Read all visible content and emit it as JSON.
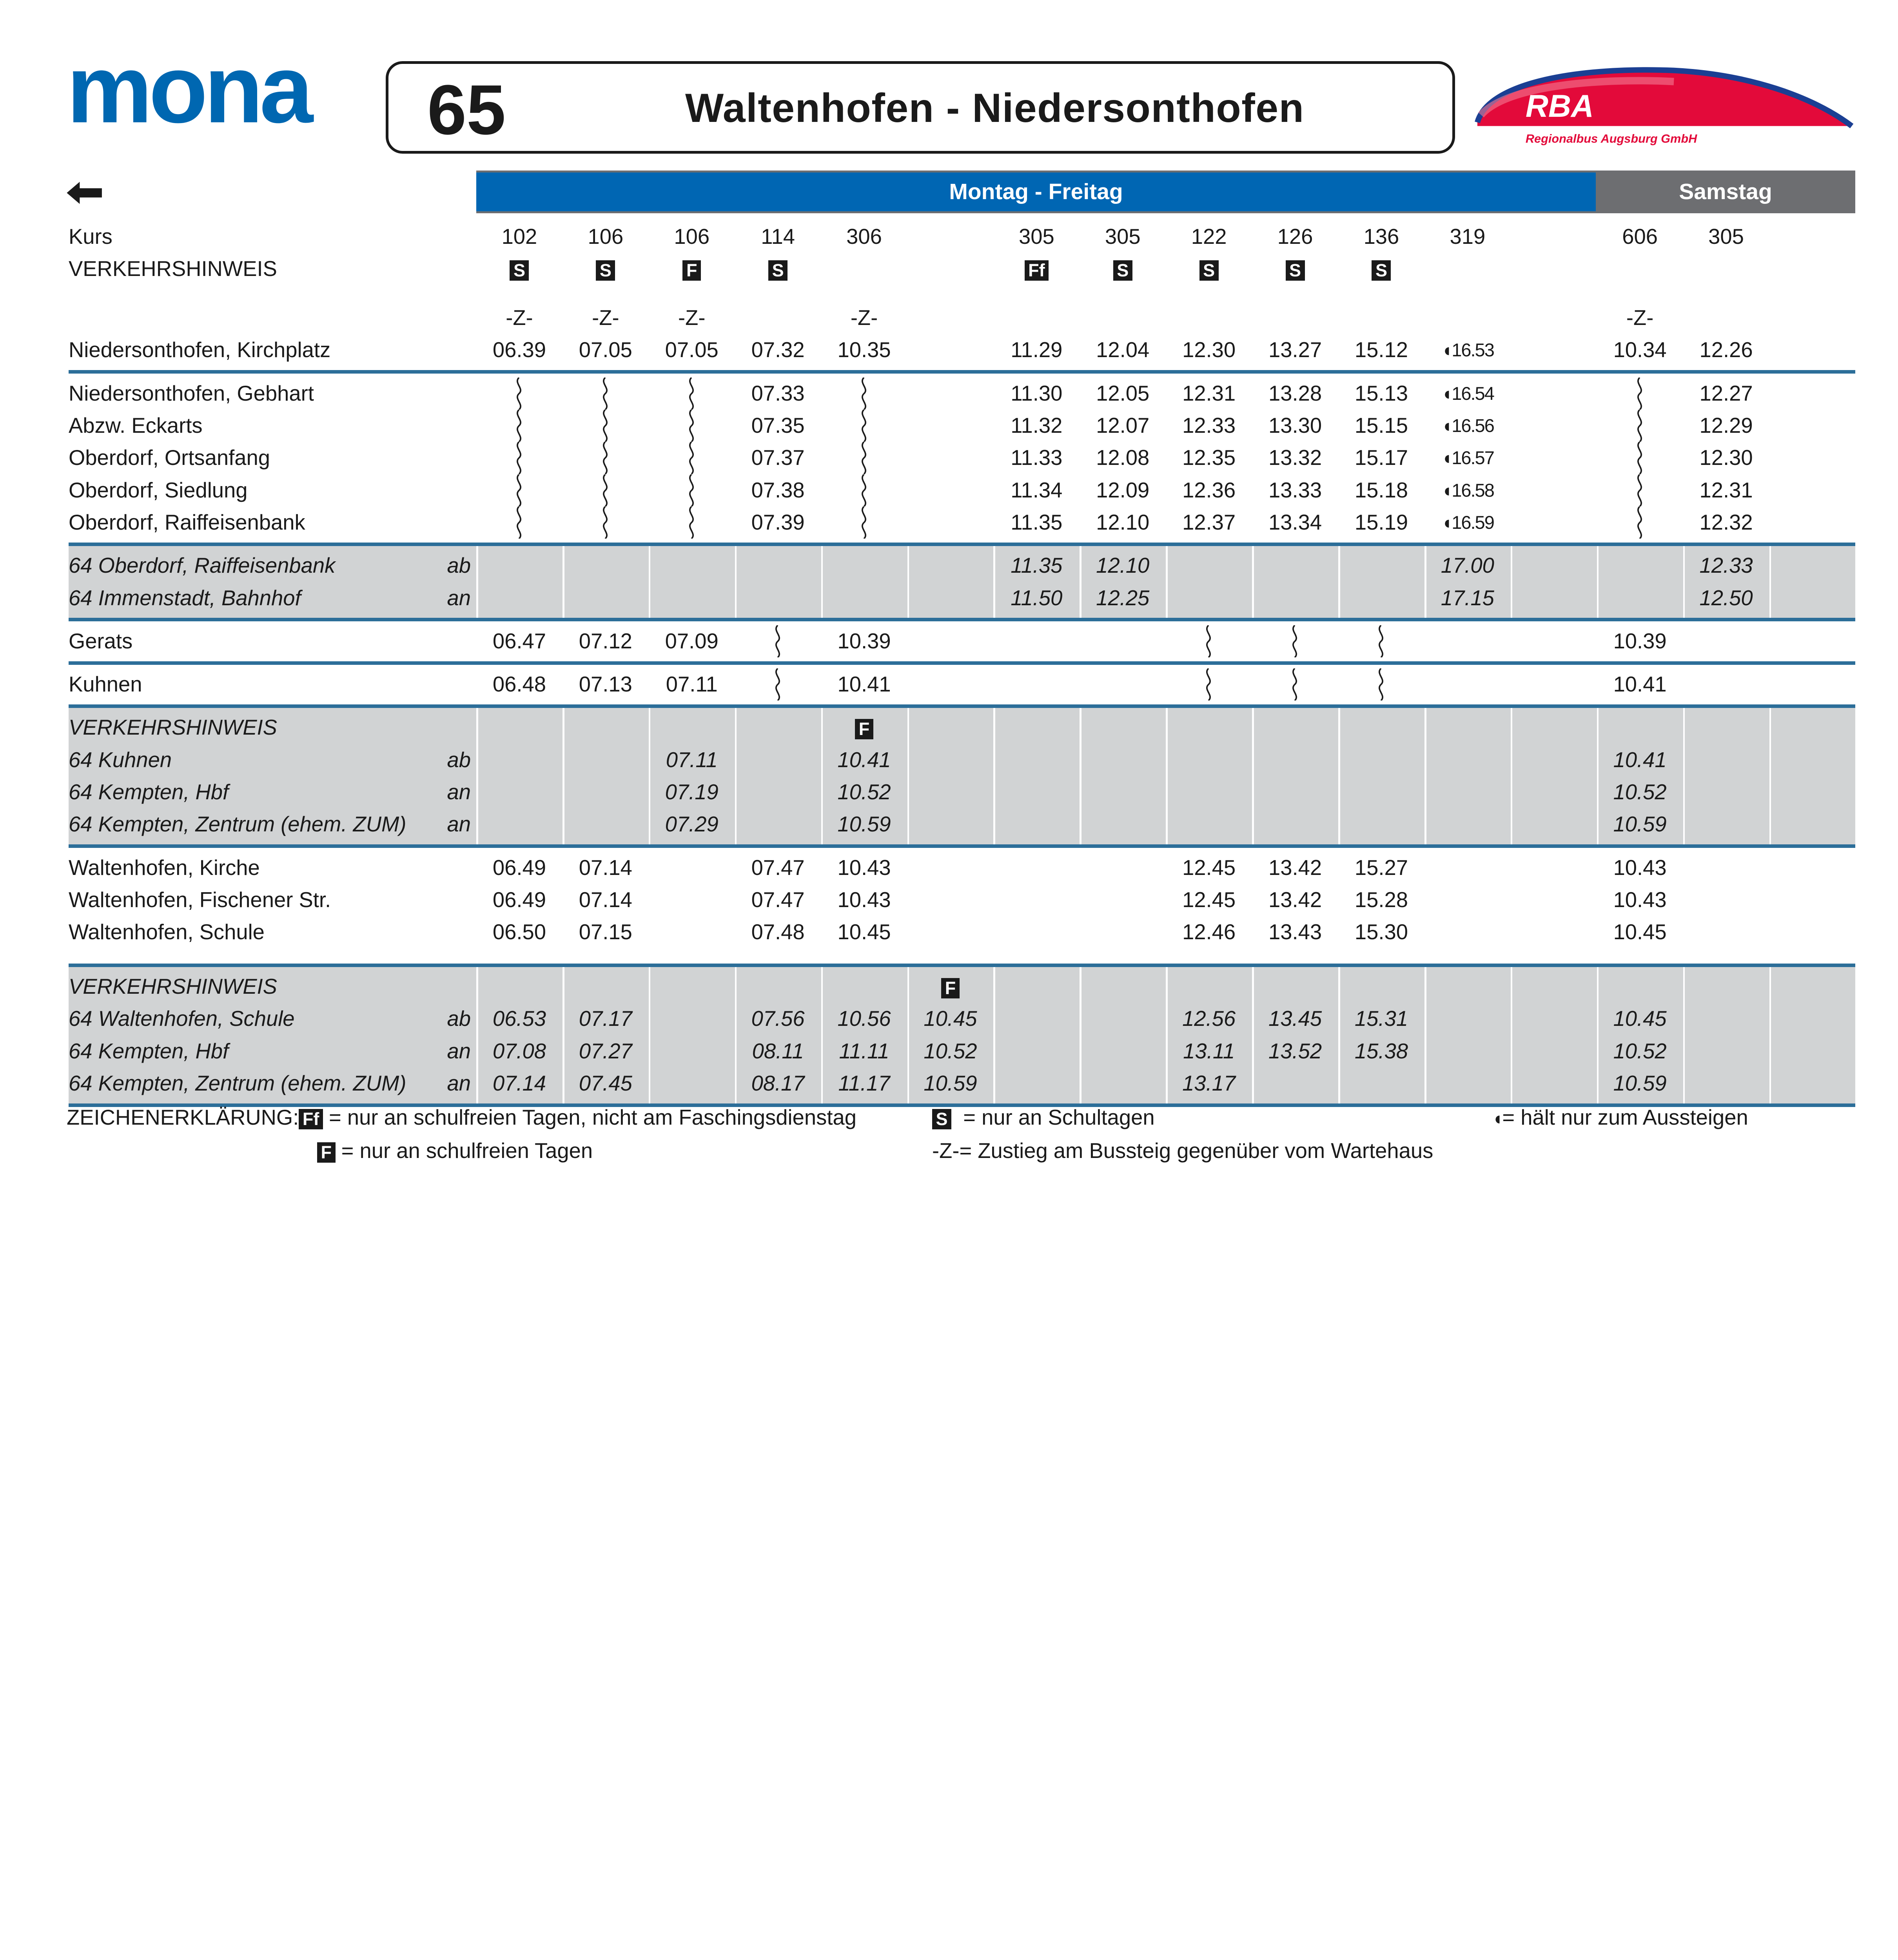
{
  "header": {
    "logo": "mona",
    "line_number": "65",
    "route_title": "Waltenhofen - Niedersonthofen",
    "operator_logo": "RBA",
    "operator_name": "Regionalbus Augsburg GmbH"
  },
  "colors": {
    "brand_blue": "#0066b3",
    "rule_blue": "#2c6e99",
    "samstag_gray": "#6d6e71",
    "shaded_gray": "#d1d3d4",
    "rba_red": "#e30a3a"
  },
  "direction_icon": "arrow-left-icon",
  "day_headers": {
    "weekday": "Montag - Freitag",
    "saturday": "Samstag"
  },
  "sections": [
    {
      "type": "head",
      "rows": [
        {
          "label": "Kurs",
          "cells": [
            "102",
            "106",
            "106",
            "114",
            "306",
            "",
            "305",
            "305",
            "122",
            "126",
            "136",
            "319",
            "",
            "606",
            "305",
            ""
          ]
        },
        {
          "label": "VERKEHRSHINWEIS",
          "kind": "badges",
          "cells": [
            "S",
            "S",
            "F",
            "S",
            "",
            "",
            "Ff",
            "S",
            "S",
            "S",
            "S",
            "",
            "",
            "",
            "",
            ""
          ]
        },
        {
          "label": "",
          "spacer": true,
          "cells": [
            "-Z-",
            "-Z-",
            "-Z-",
            "",
            "-Z-",
            "",
            "",
            "",
            "",
            "",
            "",
            "",
            "",
            "-Z-",
            "",
            ""
          ]
        },
        {
          "label": "Niedersonthofen, Kirchplatz",
          "cells": [
            "06.39",
            "07.05",
            "07.05",
            "07.32",
            "10.35",
            "",
            "11.29",
            "12.04",
            "12.30",
            "13.27",
            "15.12",
            "◖16.53",
            "",
            "10.34",
            "12.26",
            ""
          ]
        }
      ]
    },
    {
      "type": "plain",
      "rows": [
        {
          "label": "Niedersonthofen, Gebhart",
          "cells": [
            "~",
            "~",
            "~",
            "07.33",
            "~",
            "",
            "11.30",
            "12.05",
            "12.31",
            "13.28",
            "15.13",
            "◖16.54",
            "",
            "~",
            "12.27",
            ""
          ]
        },
        {
          "label": "Abzw. Eckarts",
          "cells": [
            "~",
            "~",
            "~",
            "07.35",
            "~",
            "",
            "11.32",
            "12.07",
            "12.33",
            "13.30",
            "15.15",
            "◖16.56",
            "",
            "~",
            "12.29",
            ""
          ]
        },
        {
          "label": "Oberdorf, Ortsanfang",
          "cells": [
            "~",
            "~",
            "~",
            "07.37",
            "~",
            "",
            "11.33",
            "12.08",
            "12.35",
            "13.32",
            "15.17",
            "◖16.57",
            "",
            "~",
            "12.30",
            ""
          ]
        },
        {
          "label": "Oberdorf, Siedlung",
          "cells": [
            "~",
            "~",
            "~",
            "07.38",
            "~",
            "",
            "11.34",
            "12.09",
            "12.36",
            "13.33",
            "15.18",
            "◖16.58",
            "",
            "~",
            "12.31",
            ""
          ]
        },
        {
          "label": "Oberdorf, Raiffeisenbank",
          "cells": [
            "~",
            "~",
            "~",
            "07.39",
            "~",
            "",
            "11.35",
            "12.10",
            "12.37",
            "13.34",
            "15.19",
            "◖16.59",
            "",
            "~",
            "12.32",
            ""
          ]
        }
      ]
    },
    {
      "type": "gray",
      "rows": [
        {
          "label": "64 Oberdorf, Raiffeisenbank",
          "abn": "ab",
          "cells": [
            "",
            "",
            "",
            "",
            "",
            "",
            "11.35",
            "12.10",
            "",
            "",
            "",
            "17.00",
            "",
            "",
            "12.33",
            ""
          ]
        },
        {
          "label": "64 Immenstadt, Bahnhof",
          "abn": "an",
          "cells": [
            "",
            "",
            "",
            "",
            "",
            "",
            "11.50",
            "12.25",
            "",
            "",
            "",
            "17.15",
            "",
            "",
            "12.50",
            ""
          ]
        }
      ]
    },
    {
      "type": "plain",
      "rows": [
        {
          "label": "Gerats",
          "cells": [
            "06.47",
            "07.12",
            "07.09",
            "~",
            "10.39",
            "",
            "",
            "",
            "~",
            "~",
            "~",
            "",
            "",
            "10.39",
            "",
            ""
          ]
        }
      ]
    },
    {
      "type": "plain",
      "rows": [
        {
          "label": "Kuhnen",
          "cells": [
            "06.48",
            "07.13",
            "07.11",
            "~",
            "10.41",
            "",
            "",
            "",
            "~",
            "~",
            "~",
            "",
            "",
            "10.41",
            "",
            ""
          ]
        }
      ]
    },
    {
      "type": "gray",
      "rows": [
        {
          "label": "VERKEHRSHINWEIS",
          "kind": "badges",
          "cells": [
            "",
            "",
            "",
            "",
            "F",
            "",
            "",
            "",
            "",
            "",
            "",
            "",
            "",
            "",
            "",
            ""
          ]
        },
        {
          "label": "64 Kuhnen",
          "abn": "ab",
          "cells": [
            "",
            "",
            "07.11",
            "",
            "10.41",
            "",
            "",
            "",
            "",
            "",
            "",
            "",
            "",
            "10.41",
            "",
            ""
          ]
        },
        {
          "label": "64 Kempten, Hbf",
          "abn": "an",
          "cells": [
            "",
            "",
            "07.19",
            "",
            "10.52",
            "",
            "",
            "",
            "",
            "",
            "",
            "",
            "",
            "10.52",
            "",
            ""
          ]
        },
        {
          "label": "64 Kempten, Zentrum (ehem. ZUM)",
          "abn": "an",
          "cells": [
            "",
            "",
            "07.29",
            "",
            "10.59",
            "",
            "",
            "",
            "",
            "",
            "",
            "",
            "",
            "10.59",
            "",
            ""
          ]
        }
      ]
    },
    {
      "type": "plain",
      "extra": true,
      "rows": [
        {
          "label": "Waltenhofen, Kirche",
          "cells": [
            "06.49",
            "07.14",
            "",
            "07.47",
            "10.43",
            "",
            "",
            "",
            "12.45",
            "13.42",
            "15.27",
            "",
            "",
            "10.43",
            "",
            ""
          ]
        },
        {
          "label": "Waltenhofen, Fischener Str.",
          "cells": [
            "06.49",
            "07.14",
            "",
            "07.47",
            "10.43",
            "",
            "",
            "",
            "12.45",
            "13.42",
            "15.28",
            "",
            "",
            "10.43",
            "",
            ""
          ]
        },
        {
          "label": "Waltenhofen, Schule",
          "cells": [
            "06.50",
            "07.15",
            "",
            "07.48",
            "10.45",
            "",
            "",
            "",
            "12.46",
            "13.43",
            "15.30",
            "",
            "",
            "10.45",
            "",
            ""
          ]
        }
      ]
    },
    {
      "type": "gray",
      "last": true,
      "rows": [
        {
          "label": "VERKEHRSHINWEIS",
          "kind": "badges",
          "cells": [
            "",
            "",
            "",
            "",
            "",
            "F",
            "",
            "",
            "",
            "",
            "",
            "",
            "",
            "",
            "",
            ""
          ]
        },
        {
          "label": "64 Waltenhofen, Schule",
          "abn": "ab",
          "cells": [
            "06.53",
            "07.17",
            "",
            "07.56",
            "10.56",
            "10.45",
            "",
            "",
            "12.56",
            "13.45",
            "15.31",
            "",
            "",
            "10.45",
            "",
            ""
          ]
        },
        {
          "label": "64 Kempten, Hbf",
          "abn": "an",
          "cells": [
            "07.08",
            "07.27",
            "",
            "08.11",
            "11.11",
            "10.52",
            "",
            "",
            "13.11",
            "13.52",
            "15.38",
            "",
            "",
            "10.52",
            "",
            ""
          ]
        },
        {
          "label": "64 Kempten, Zentrum (ehem. ZUM)",
          "abn": "an",
          "cells": [
            "07.14",
            "07.45",
            "",
            "08.17",
            "11.17",
            "10.59",
            "",
            "",
            "13.17",
            "",
            "",
            "",
            "",
            "10.59",
            "",
            ""
          ]
        }
      ]
    }
  ],
  "legend": {
    "title": "ZEICHENERKLÄRUNG:",
    "items": [
      {
        "symbol": "Ff",
        "text": "= nur an schulfreien Tagen, nicht am Faschingsdienstag"
      },
      {
        "symbol": "S",
        "text": "= nur an Schultagen"
      },
      {
        "symbol": "◖",
        "text": "= hält nur zum Aussteigen"
      },
      {
        "symbol": "F",
        "text": "= nur an schulfreien Tagen"
      },
      {
        "symbol": "-Z-",
        "text": "= Zustieg am Bussteig gegenüber vom Wartehaus"
      }
    ]
  }
}
